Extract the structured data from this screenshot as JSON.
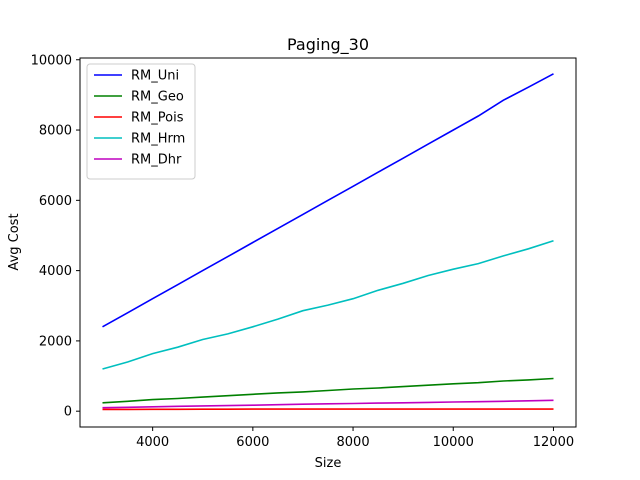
{
  "chart_data": {
    "type": "line",
    "title": "Paging_30",
    "xlabel": "Size",
    "ylabel": "Avg Cost",
    "xlim": [
      2550,
      12450
    ],
    "ylim": [
      -450,
      10050
    ],
    "x_ticks": [
      4000,
      6000,
      8000,
      10000,
      12000
    ],
    "x_tick_labels": [
      "4000",
      "6000",
      "8000",
      "10000",
      "12000"
    ],
    "y_ticks": [
      0,
      2000,
      4000,
      6000,
      8000,
      10000
    ],
    "y_tick_labels": [
      "0",
      "2000",
      "4000",
      "6000",
      "8000",
      "10000"
    ],
    "grid": false,
    "legend_position": "top-left",
    "x": [
      3000,
      3500,
      4000,
      4500,
      5000,
      5500,
      6000,
      6500,
      7000,
      7500,
      8000,
      8500,
      9000,
      9500,
      10000,
      10500,
      11000,
      11500,
      12000
    ],
    "series": [
      {
        "name": "RM_Uni",
        "color": "#0000ff",
        "values": [
          2400,
          2800,
          3200,
          3600,
          4000,
          4400,
          4800,
          5200,
          5600,
          6000,
          6400,
          6800,
          7200,
          7600,
          8000,
          8400,
          8850,
          9220,
          9600
        ]
      },
      {
        "name": "RM_Geo",
        "color": "#008000",
        "values": [
          240,
          280,
          330,
          360,
          400,
          440,
          480,
          520,
          550,
          590,
          630,
          660,
          700,
          740,
          780,
          810,
          860,
          890,
          930
        ]
      },
      {
        "name": "RM_Pois",
        "color": "#ff0000",
        "values": [
          50,
          52,
          54,
          55,
          56,
          57,
          58,
          58,
          58,
          59,
          59,
          59,
          60,
          60,
          60,
          60,
          60,
          60,
          60
        ]
      },
      {
        "name": "RM_Hrm",
        "color": "#00bfbf",
        "values": [
          1200,
          1400,
          1640,
          1820,
          2040,
          2200,
          2400,
          2620,
          2860,
          3020,
          3200,
          3440,
          3640,
          3860,
          4040,
          4200,
          4420,
          4620,
          4850
        ]
      },
      {
        "name": "RM_Dhr",
        "color": "#bf00bf",
        "values": [
          100,
          110,
          125,
          140,
          150,
          160,
          170,
          185,
          200,
          210,
          220,
          230,
          240,
          250,
          260,
          270,
          280,
          295,
          310
        ]
      }
    ]
  }
}
